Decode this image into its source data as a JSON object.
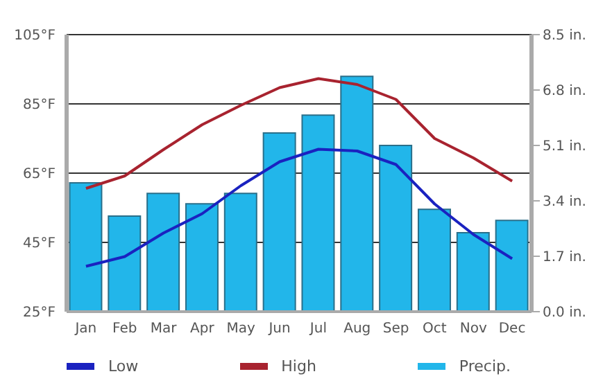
{
  "chart_data": {
    "type": "bar",
    "categories": [
      "Jan",
      "Feb",
      "Mar",
      "Apr",
      "May",
      "Jun",
      "Jul",
      "Aug",
      "Sep",
      "Oct",
      "Nov",
      "Dec"
    ],
    "series": [
      {
        "name": "Low",
        "type": "line",
        "color": "#1a22c0",
        "values": [
          38.1,
          40.9,
          47.7,
          53.3,
          61.4,
          68.3,
          71.9,
          71.4,
          67.5,
          56.1,
          47.3,
          40.3
        ]
      },
      {
        "name": "High",
        "type": "line",
        "color": "#a8232f",
        "values": [
          60.6,
          64.2,
          71.8,
          79,
          84.6,
          89.7,
          92.3,
          90.6,
          86.3,
          75,
          69.4,
          62.7
        ]
      },
      {
        "name": "Precip.",
        "axis": "y2",
        "color": "#22b6ea",
        "values": [
          3.95,
          2.93,
          3.63,
          3.31,
          3.63,
          5.48,
          6.03,
          7.22,
          5.1,
          3.14,
          2.42,
          2.8
        ]
      }
    ],
    "ylim": [
      25,
      105
    ],
    "yticks": [
      {
        "value": 25,
        "label": "25°F"
      },
      {
        "value": 45,
        "label": "45°F"
      },
      {
        "value": 65,
        "label": "65°F"
      },
      {
        "value": 85,
        "label": "85°F"
      },
      {
        "value": 105,
        "label": "105°F"
      }
    ],
    "y2lim": [
      0,
      8.5
    ],
    "y2ticks": [
      {
        "value": 0,
        "label": "0.0 in."
      },
      {
        "value": 1.7,
        "label": "1.7 in."
      },
      {
        "value": 3.4,
        "label": "3.4 in."
      },
      {
        "value": 5.1,
        "label": "5.1 in."
      },
      {
        "value": 6.8,
        "label": "6.8 in."
      },
      {
        "value": 8.5,
        "label": "8.5 in."
      }
    ],
    "grid": "y",
    "legend": "bottom",
    "marker": "none",
    "line_style": "solid"
  }
}
